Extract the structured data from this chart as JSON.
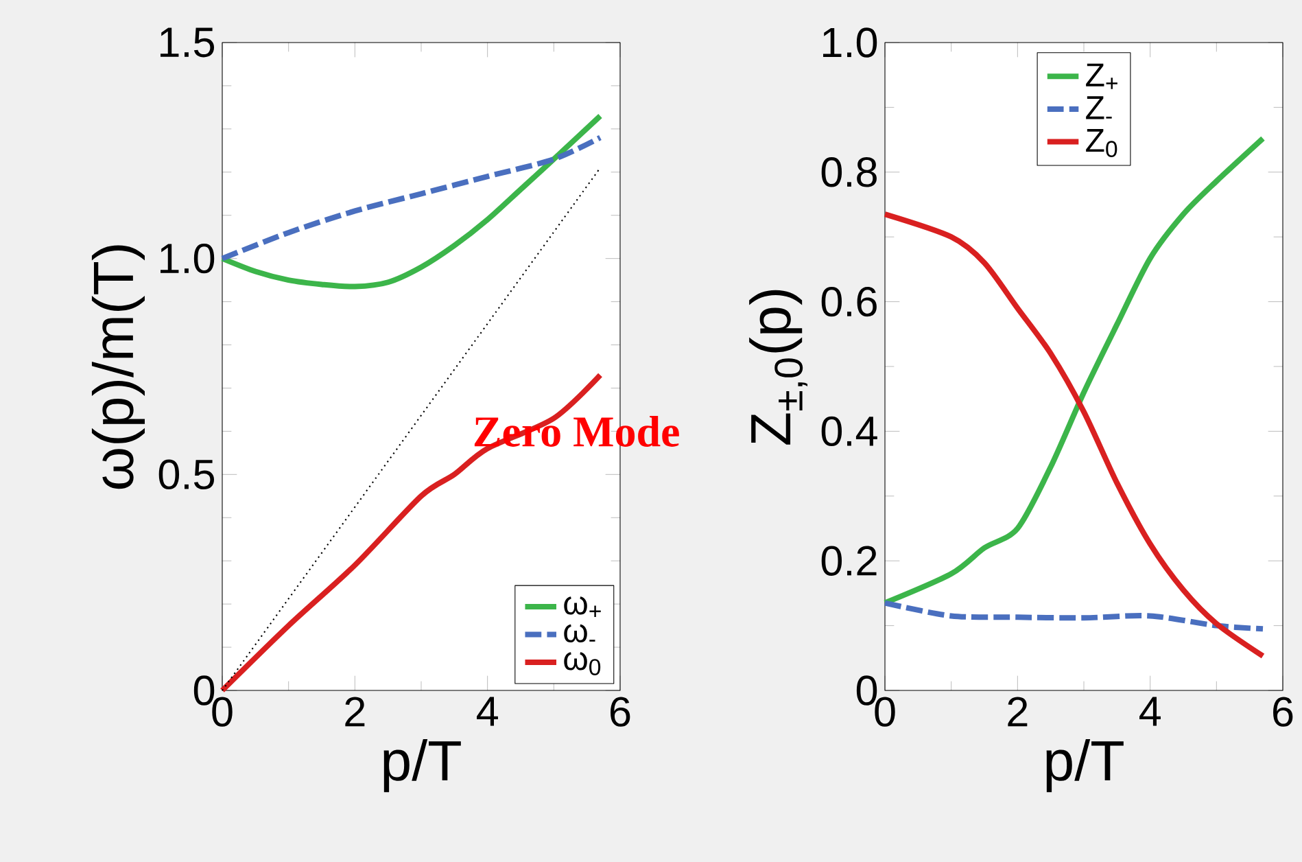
{
  "chart_data": [
    {
      "type": "line",
      "xlabel": "p/T",
      "ylabel": "ω(p)/m(T)",
      "xlim": [
        0,
        6
      ],
      "ylim": [
        0,
        1.5
      ],
      "xticks": [
        0,
        2,
        4,
        6
      ],
      "yticks": [
        0,
        0.5,
        {
          "value": 1,
          "label": "1.0"
        },
        1.5
      ],
      "legend": "bottom right",
      "annotations": [
        "Zero Mode"
      ],
      "series": [
        {
          "name": "ω$_{+}$",
          "color": "#3cb54a",
          "line_style": "solid",
          "x": [
            0,
            0.5,
            1,
            1.5,
            2,
            2.5,
            3,
            3.5,
            4,
            4.5,
            5,
            5.7
          ],
          "values": [
            1.0,
            0.97,
            0.95,
            0.94,
            0.935,
            0.945,
            0.98,
            1.03,
            1.09,
            1.16,
            1.23,
            1.33
          ]
        },
        {
          "name": "ω$_{-}$",
          "color": "#4a6fbf",
          "line_style": "dashed",
          "x": [
            0,
            1,
            2,
            3,
            4,
            5,
            5.7
          ],
          "values": [
            1.0,
            1.06,
            1.11,
            1.15,
            1.19,
            1.23,
            1.28
          ]
        },
        {
          "name": "ω$_{0}$",
          "color": "#d92020",
          "line_style": "solid",
          "x": [
            0,
            1,
            2,
            3,
            3.5,
            4,
            5,
            5.7
          ],
          "values": [
            0,
            0.15,
            0.29,
            0.45,
            0.5,
            0.56,
            0.63,
            0.73
          ]
        },
        {
          "color": "#000000",
          "line_style": "dotted",
          "x": [
            0,
            5.7
          ],
          "values": [
            0,
            1.21
          ]
        }
      ]
    },
    {
      "type": "line",
      "xlabel": "p/T",
      "ylabel": "Z$_{±,0}$(p)",
      "xlim": [
        0,
        6
      ],
      "ylim": [
        0,
        1
      ],
      "xticks": [
        0,
        2,
        4,
        6
      ],
      "yticks": [
        0,
        0.2,
        0.4,
        0.6,
        0.8,
        {
          "value": 1,
          "label": "1.0"
        }
      ],
      "legend": "top",
      "series": [
        {
          "name": "Z$_{+}$",
          "color": "#3cb54a",
          "line_style": "solid",
          "x": [
            0,
            1,
            1.5,
            2,
            2.5,
            3,
            3.5,
            4,
            4.5,
            5,
            5.7
          ],
          "values": [
            0.135,
            0.18,
            0.22,
            0.25,
            0.345,
            0.46,
            0.565,
            0.667,
            0.735,
            0.786,
            0.852
          ]
        },
        {
          "name": "Z$_{-}$",
          "color": "#4a6fbf",
          "line_style": "dashed",
          "x": [
            0,
            1,
            2,
            3,
            4,
            5,
            5.7
          ],
          "values": [
            0.135,
            0.115,
            0.113,
            0.112,
            0.115,
            0.1,
            0.095
          ]
        },
        {
          "name": "Z$_{0}$",
          "color": "#d92020",
          "line_style": "solid",
          "x": [
            0,
            1,
            1.5,
            2,
            2.5,
            3,
            3.5,
            4,
            4.5,
            5,
            5.7
          ],
          "values": [
            0.735,
            0.7,
            0.66,
            0.59,
            0.52,
            0.43,
            0.32,
            0.226,
            0.155,
            0.103,
            0.053
          ]
        }
      ]
    }
  ]
}
